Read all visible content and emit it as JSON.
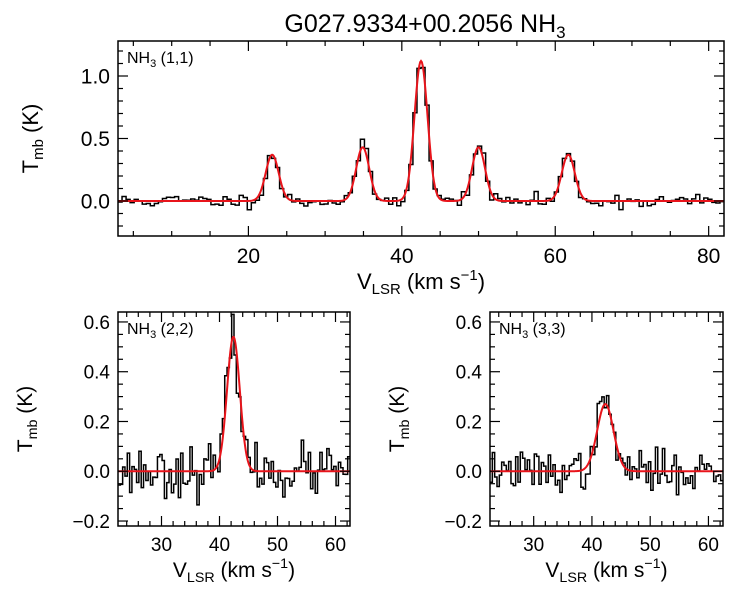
{
  "figure": {
    "title_main": "G027.9334+00.2056 NH",
    "title_sub": "3"
  },
  "colors": {
    "observed": "#000000",
    "fit": "#e8141b",
    "axes": "#000000"
  },
  "chart_data": [
    {
      "type": "line",
      "panel": "top",
      "label_main": "NH",
      "label_sub": "3",
      "label_suffix": " (1,1)",
      "xlabel": {
        "main": "V",
        "sub": "LSR",
        "post": " (km s",
        "sup": "−1",
        "end": ")"
      },
      "ylabel": {
        "main": "T",
        "sub": "mb",
        "post": " (K)"
      },
      "xlim": [
        3,
        82
      ],
      "ylim": [
        -0.28,
        1.28
      ],
      "xticks": [
        20,
        40,
        60,
        80
      ],
      "xtick_labels": [
        "20",
        "40",
        "60",
        "80"
      ],
      "yticks": [
        0.0,
        0.5,
        1.0
      ],
      "ytick_labels": [
        "0.0",
        "0.5",
        "1.0"
      ],
      "x_minor_step": 5,
      "y_minor_step": 0.1,
      "noise": 0.028,
      "seed": 11,
      "series": [
        {
          "name": "fit",
          "components": [
            {
              "center": 23.1,
              "amplitude": 0.37,
              "sigma": 0.85
            },
            {
              "center": 34.9,
              "amplitude": 0.43,
              "sigma": 0.85
            },
            {
              "center": 42.5,
              "amplitude": 1.12,
              "sigma": 0.85
            },
            {
              "center": 50.0,
              "amplitude": 0.43,
              "sigma": 0.85
            },
            {
              "center": 61.7,
              "amplitude": 0.37,
              "sigma": 0.85
            }
          ]
        }
      ]
    },
    {
      "type": "line",
      "panel": "bottom-left",
      "label_main": "NH",
      "label_sub": "3",
      "label_suffix": " (2,2)",
      "xlabel": {
        "main": "V",
        "sub": "LSR",
        "post": " (km s",
        "sup": "−1",
        "end": ")"
      },
      "ylabel": {
        "main": "T",
        "sub": "mb",
        "post": " (K)"
      },
      "xlim": [
        22.5,
        62.5
      ],
      "ylim": [
        -0.22,
        0.64
      ],
      "xticks": [
        30,
        40,
        50,
        60
      ],
      "xtick_labels": [
        "30",
        "40",
        "50",
        "60"
      ],
      "yticks": [
        -0.2,
        0.0,
        0.2,
        0.4,
        0.6
      ],
      "ytick_labels": [
        "−0.2",
        "0.0",
        "0.2",
        "0.4",
        "0.6"
      ],
      "x_minor_step": 2,
      "y_minor_step": 0.05,
      "noise": 0.05,
      "seed": 23,
      "series": [
        {
          "name": "fit",
          "components": [
            {
              "center": 42.4,
              "amplitude": 0.54,
              "sigma": 1.1
            }
          ]
        }
      ]
    },
    {
      "type": "line",
      "panel": "bottom-right",
      "label_main": "NH",
      "label_sub": "3",
      "label_suffix": " (3,3)",
      "xlabel": {
        "main": "V",
        "sub": "LSR",
        "post": " (km s",
        "sup": "−1",
        "end": ")"
      },
      "ylabel": {
        "main": "T",
        "sub": "mb",
        "post": " (K)"
      },
      "xlim": [
        22.5,
        62.5
      ],
      "ylim": [
        -0.22,
        0.64
      ],
      "xticks": [
        30,
        40,
        50,
        60
      ],
      "xtick_labels": [
        "30",
        "40",
        "50",
        "60"
      ],
      "yticks": [
        -0.2,
        0.0,
        0.2,
        0.4,
        0.6
      ],
      "ytick_labels": [
        "−0.2",
        "0.0",
        "0.2",
        "0.4",
        "0.6"
      ],
      "x_minor_step": 2,
      "y_minor_step": 0.05,
      "noise": 0.04,
      "seed": 37,
      "series": [
        {
          "name": "fit",
          "components": [
            {
              "center": 42.3,
              "amplitude": 0.27,
              "sigma": 1.4
            }
          ]
        }
      ]
    }
  ]
}
